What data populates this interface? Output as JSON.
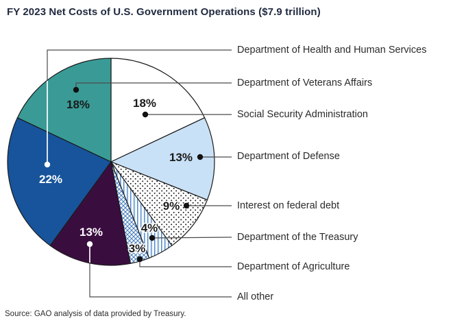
{
  "title": "FY 2023 Net Costs of U.S. Government Operations ($7.9 trillion)",
  "source": "Source: GAO analysis of data provided by Treasury.",
  "chart_data": {
    "type": "pie",
    "title": "FY 2023 Net Costs of U.S. Government Operations ($7.9 trillion)",
    "total": "$7.9 trillion",
    "unit": "percent",
    "start_angle": "12 o'clock",
    "direction": "clockwise",
    "legend_position": "right, leader lines with dots",
    "slices": [
      {
        "label": "Social Security Administration",
        "value_pct": 18,
        "fill": "#ffffff",
        "text_color": "#1a1a1a"
      },
      {
        "label": "Department of Defense",
        "value_pct": 13,
        "fill": "#c9e1f6",
        "text_color": "#1a1a1a"
      },
      {
        "label": "Interest on federal debt",
        "value_pct": 9,
        "fill": "pattern:dots",
        "text_color": "#1a1a1a"
      },
      {
        "label": "Department of the Treasury",
        "value_pct": 4,
        "fill": "pattern:vstripes",
        "text_color": "#1a1a1a"
      },
      {
        "label": "Department of Agriculture",
        "value_pct": 3,
        "fill": "pattern:crosshatch",
        "text_color": "#1a1a1a"
      },
      {
        "label": "All other",
        "value_pct": 13,
        "fill": "#3a0d3f",
        "text_color": "#ffffff"
      },
      {
        "label": "Department of Health and Human Services",
        "value_pct": 22,
        "fill": "#17549b",
        "text_color": "#ffffff"
      },
      {
        "label": "Department of Veterans Affairs",
        "value_pct": 18,
        "fill": "#3a9b96",
        "text_color": "#1a1a1a"
      }
    ],
    "pattern_ink": "#4a80bf",
    "outline_color": "#1a1a1a",
    "leader_line_color": "#4a4a4a"
  }
}
